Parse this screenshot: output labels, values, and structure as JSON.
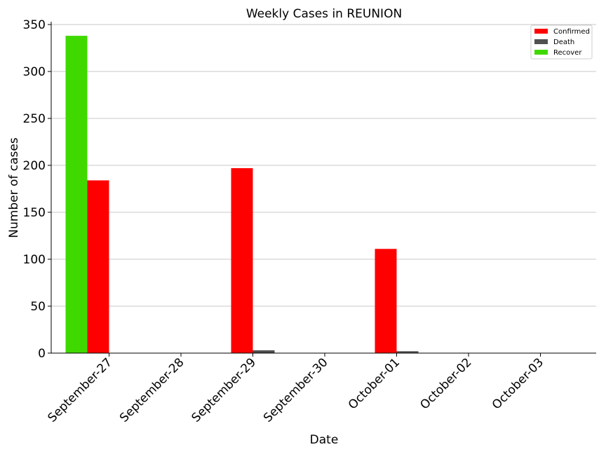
{
  "chart_data": {
    "type": "bar",
    "title": "Weekly Cases in REUNION",
    "xlabel": "Date",
    "ylabel": "Number of cases",
    "categories": [
      "September-27",
      "September-28",
      "September-29",
      "September-30",
      "October-01",
      "October-02",
      "October-03"
    ],
    "yticks": [
      0,
      50,
      100,
      150,
      200,
      250,
      300,
      350
    ],
    "ylim": [
      0,
      353
    ],
    "grid": "horizontal",
    "legend_position": "top-right",
    "series": [
      {
        "name": "Recover",
        "color": "#3fd900",
        "values": [
          338,
          0,
          0,
          0,
          0,
          0,
          0
        ]
      },
      {
        "name": "Confirmed",
        "color": "#ff0000",
        "values": [
          184,
          0,
          197,
          0,
          111,
          0,
          0
        ]
      },
      {
        "name": "Death",
        "color": "#505050",
        "values": [
          0,
          0,
          3,
          0,
          2,
          0,
          0
        ]
      }
    ],
    "legend_order": [
      "Confirmed",
      "Death",
      "Recover"
    ]
  }
}
